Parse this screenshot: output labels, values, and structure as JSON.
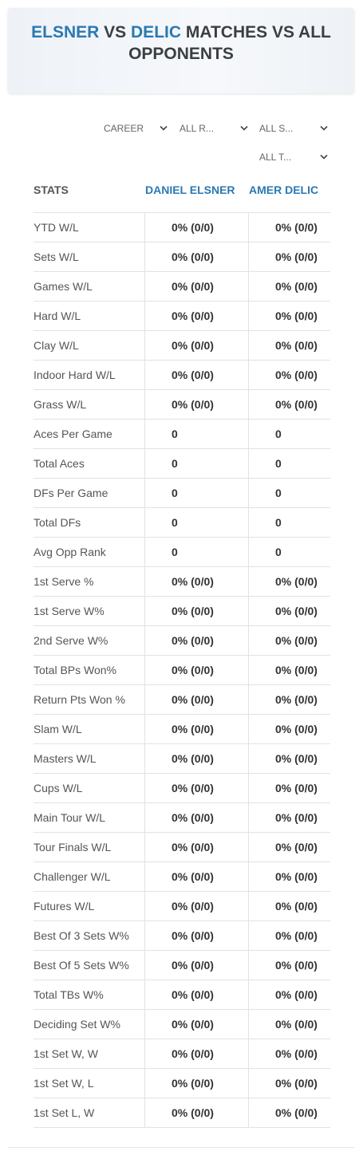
{
  "header": {
    "title_parts": [
      "ELSNER",
      "VS",
      "DELIC",
      "MATCHES VS ALL OPPONENTS"
    ]
  },
  "filters": [
    "CAREER",
    "ALL R...",
    "ALL S...",
    "ALL T..."
  ],
  "table": {
    "columns": [
      "STATS",
      "DANIEL ELSNER",
      "AMER DELIC"
    ],
    "rows": [
      [
        "YTD W/L",
        "0% (0/0)",
        "0% (0/0)"
      ],
      [
        "Sets W/L",
        "0% (0/0)",
        "0% (0/0)"
      ],
      [
        "Games W/L",
        "0% (0/0)",
        "0% (0/0)"
      ],
      [
        "Hard W/L",
        "0% (0/0)",
        "0% (0/0)"
      ],
      [
        "Clay W/L",
        "0% (0/0)",
        "0% (0/0)"
      ],
      [
        "Indoor Hard W/L",
        "0% (0/0)",
        "0% (0/0)"
      ],
      [
        "Grass W/L",
        "0% (0/0)",
        "0% (0/0)"
      ],
      [
        "Aces Per Game",
        "0",
        "0"
      ],
      [
        "Total Aces",
        "0",
        "0"
      ],
      [
        "DFs Per Game",
        "0",
        "0"
      ],
      [
        "Total DFs",
        "0",
        "0"
      ],
      [
        "Avg Opp Rank",
        "0",
        "0"
      ],
      [
        "1st Serve %",
        "0% (0/0)",
        "0% (0/0)"
      ],
      [
        "1st Serve W%",
        "0% (0/0)",
        "0% (0/0)"
      ],
      [
        "2nd Serve W%",
        "0% (0/0)",
        "0% (0/0)"
      ],
      [
        "Total BPs Won%",
        "0% (0/0)",
        "0% (0/0)"
      ],
      [
        "Return Pts Won %",
        "0% (0/0)",
        "0% (0/0)"
      ],
      [
        "Slam W/L",
        "0% (0/0)",
        "0% (0/0)"
      ],
      [
        "Masters W/L",
        "0% (0/0)",
        "0% (0/0)"
      ],
      [
        "Cups W/L",
        "0% (0/0)",
        "0% (0/0)"
      ],
      [
        "Main Tour W/L",
        "0% (0/0)",
        "0% (0/0)"
      ],
      [
        "Tour Finals W/L",
        "0% (0/0)",
        "0% (0/0)"
      ],
      [
        "Challenger W/L",
        "0% (0/0)",
        "0% (0/0)"
      ],
      [
        "Futures W/L",
        "0% (0/0)",
        "0% (0/0)"
      ],
      [
        "Best Of 3 Sets W%",
        "0% (0/0)",
        "0% (0/0)"
      ],
      [
        "Best Of 5 Sets W%",
        "0% (0/0)",
        "0% (0/0)"
      ],
      [
        "Total TBs W%",
        "0% (0/0)",
        "0% (0/0)"
      ],
      [
        "Deciding Set W%",
        "0% (0/0)",
        "0% (0/0)"
      ],
      [
        "1st Set W, W",
        "0% (0/0)",
        "0% (0/0)"
      ],
      [
        "1st Set W, L",
        "0% (0/0)",
        "0% (0/0)"
      ],
      [
        "1st Set L, W",
        "0% (0/0)",
        "0% (0/0)"
      ]
    ]
  }
}
